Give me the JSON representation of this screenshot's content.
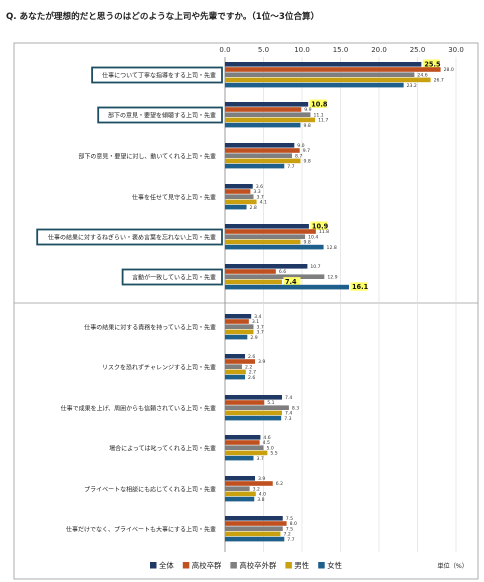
{
  "question": "Q. あなたが理想的だと思うのはどのような上司や先輩ですか。（1位～3位合算）",
  "colors": {
    "all": "#1f3864",
    "highschool": "#c0501f",
    "other": "#7f7f7f",
    "male": "#c9a010",
    "female": "#1f5f8b",
    "highlight_box": "#1d4e63",
    "highlight_label": "#ffff66"
  },
  "chart_data": {
    "type": "bar",
    "orientation": "horizontal",
    "xlim": [
      0,
      30
    ],
    "xticks": [
      "0.0",
      "5.0",
      "10.0",
      "15.0",
      "20.0",
      "25.0",
      "30.0"
    ],
    "unit_label": "単位（%）",
    "grid": true,
    "legend_position": "bottom-left",
    "series": [
      {
        "name": "全体",
        "key": "all"
      },
      {
        "name": "高校卒群",
        "key": "highschool"
      },
      {
        "name": "高校卒外群",
        "key": "other"
      },
      {
        "name": "男性",
        "key": "male"
      },
      {
        "name": "女性",
        "key": "female"
      }
    ],
    "categories": [
      {
        "label": "仕事について丁寧な指導をする上司・先輩",
        "values": [
          25.5,
          28.0,
          24.6,
          26.7,
          23.2
        ],
        "highlight": true,
        "highlight_value": 0
      },
      {
        "label": "部下の意見・要望を傾聴する上司・先輩",
        "values": [
          10.8,
          9.9,
          11.1,
          11.7,
          9.8
        ],
        "highlight": true,
        "highlight_value": 0
      },
      {
        "label": "部下の意見・要望に対し、動いてくれる上司・先輩",
        "values": [
          9.0,
          9.7,
          8.7,
          9.8,
          7.7
        ],
        "highlight": false
      },
      {
        "label": "仕事を任せて見守る上司・先輩",
        "values": [
          3.6,
          3.3,
          3.7,
          4.1,
          2.8
        ],
        "highlight": false
      },
      {
        "label": "仕事の結果に対するねぎらい・褒め言葉を忘れない上司・先輩",
        "values": [
          10.9,
          11.8,
          10.4,
          9.8,
          12.8
        ],
        "highlight": true,
        "highlight_value": 0
      },
      {
        "label": "言動が一致している上司・先輩",
        "values": [
          10.7,
          6.6,
          12.9,
          7.4,
          16.1
        ],
        "highlight": true,
        "highlight_value": [
          3,
          4
        ]
      },
      {
        "label": "仕事の結果に対する責務を持っている上司・先輩",
        "values": [
          3.4,
          3.1,
          3.7,
          3.7,
          2.9
        ],
        "highlight": false
      },
      {
        "label": "リスクを恐れずチャレンジする上司・先輩",
        "values": [
          2.6,
          3.9,
          2.2,
          2.7,
          2.6
        ],
        "highlight": false
      },
      {
        "label": "仕事で成果を上げ、周囲からも信頼されている上司・先輩",
        "values": [
          7.4,
          5.1,
          8.3,
          7.4,
          7.3
        ],
        "highlight": false
      },
      {
        "label": "場合によっては叱ってくれる上司・先輩",
        "values": [
          4.6,
          4.5,
          5.0,
          5.5,
          3.7
        ],
        "highlight": false
      },
      {
        "label": "プライベートな相談にも応じてくれる上司・先輩",
        "values": [
          3.9,
          6.2,
          3.2,
          4.0,
          3.8
        ],
        "highlight": false
      },
      {
        "label": "仕事だけでなく、プライベートも大事にする上司・先輩",
        "values": [
          7.5,
          8.0,
          7.5,
          7.2,
          7.7
        ],
        "highlight": false
      }
    ]
  }
}
